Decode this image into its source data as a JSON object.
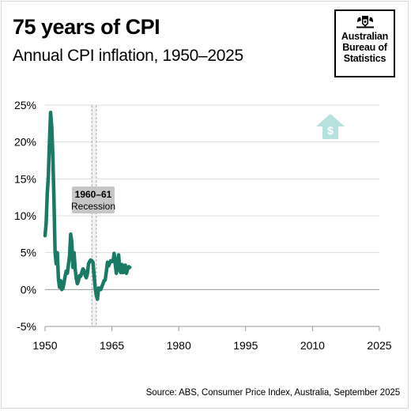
{
  "header": {
    "title": "75 years of CPI",
    "subtitle": "Annual CPI inflation, 1950–2025"
  },
  "logo": {
    "line1": "Australian",
    "line2": "Bureau of",
    "line3": "Statistics",
    "icon": "coat-of-arms-icon"
  },
  "source": "Source: ABS, Consumer Price Index, Australia, September 2025",
  "decoration": {
    "icon": "dollar-up-arrow-icon",
    "color": "#b6e1df"
  },
  "chart_data": {
    "type": "line",
    "title": "75 years of CPI",
    "subtitle": "Annual CPI inflation, 1950–2025",
    "xlabel": "",
    "ylabel": "",
    "xlim": [
      1950,
      2025
    ],
    "ylim": [
      -5,
      25
    ],
    "x_ticks": [
      1950,
      1965,
      1980,
      1995,
      2010,
      2025
    ],
    "x_tick_labels": [
      "1950",
      "1965",
      "1980",
      "1995",
      "2010",
      "2025"
    ],
    "y_ticks": [
      -5,
      0,
      5,
      10,
      15,
      20,
      25
    ],
    "y_tick_labels": [
      "-5%",
      "0%",
      "5%",
      "10%",
      "15%",
      "20%",
      "25%"
    ],
    "grid": "horizontal",
    "line_color": "#1a7a66",
    "annotations": [
      {
        "type": "recession-band",
        "x_start": 1960.5,
        "x_end": 1961.5,
        "label_bold": "1960–61",
        "label": "Recession"
      }
    ],
    "series": [
      {
        "x": [
          1950.0,
          1950.25,
          1950.5,
          1950.75,
          1951.0,
          1951.25,
          1951.5,
          1951.75,
          1952.0,
          1952.25,
          1952.5,
          1952.75,
          1953.0,
          1953.25,
          1953.5,
          1953.75,
          1954.0,
          1954.25,
          1954.5,
          1954.75,
          1955.0,
          1955.25,
          1955.5,
          1955.75,
          1956.0,
          1956.25,
          1956.5,
          1956.75,
          1957.0,
          1957.25,
          1957.5,
          1957.75,
          1958.0,
          1958.25,
          1958.5,
          1958.75,
          1959.0,
          1959.25,
          1959.5,
          1959.75,
          1960.0,
          1960.25,
          1960.5,
          1960.75,
          1961.0,
          1961.25,
          1961.5,
          1961.75,
          1962.0,
          1962.25,
          1962.5,
          1962.75,
          1963.0,
          1963.25,
          1963.5,
          1963.75,
          1964.0,
          1964.25,
          1964.5,
          1964.75,
          1965.0,
          1965.25,
          1965.5,
          1965.75,
          1966.0,
          1966.25,
          1966.5,
          1966.75,
          1967.0,
          1967.25,
          1967.5,
          1967.75,
          1968.0,
          1968.25,
          1968.5,
          1968.75,
          1969.0
        ],
        "values": [
          7.3,
          9.0,
          13.0,
          15.5,
          20.0,
          24.0,
          22.0,
          18.0,
          12.0,
          5.0,
          3.5,
          5.0,
          1.5,
          0.3,
          1.2,
          0.0,
          0.2,
          0.9,
          1.8,
          2.5,
          2.2,
          3.4,
          4.5,
          7.5,
          6.5,
          3.0,
          5.0,
          2.8,
          1.5,
          0.8,
          1.2,
          1.9,
          1.8,
          2.3,
          2.8,
          2.6,
          1.9,
          1.6,
          2.2,
          3.5,
          3.8,
          4.0,
          3.9,
          3.7,
          2.0,
          0.3,
          -0.8,
          -1.3,
          0.2,
          0.2,
          0.0,
          0.4,
          0.8,
          1.2,
          1.3,
          2.5,
          3.7,
          3.2,
          3.6,
          3.9,
          3.8,
          3.8,
          4.9,
          3.5,
          2.2,
          3.8,
          4.7,
          2.6,
          2.3,
          3.4,
          2.3,
          2.5,
          3.3,
          2.2,
          2.7,
          3.1,
          3.0
        ]
      }
    ]
  }
}
